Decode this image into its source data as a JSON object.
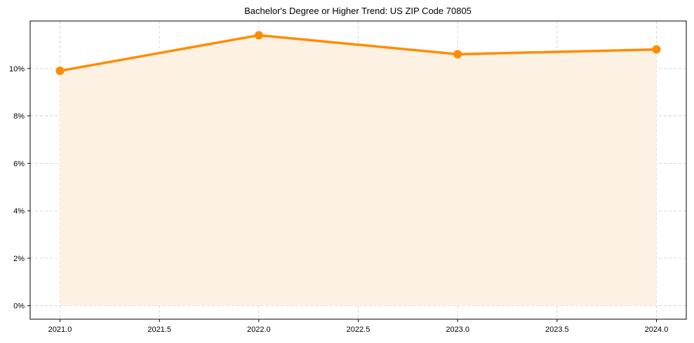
{
  "chart_data": {
    "type": "line",
    "title": "Bachelor's Degree or Higher Trend: US ZIP Code 70805",
    "xlabel": "",
    "ylabel": "",
    "x": [
      2021,
      2022,
      2023,
      2024
    ],
    "series": [
      {
        "name": "Bachelor's Degree or Higher",
        "values": [
          9.9,
          11.4,
          10.6,
          10.8
        ],
        "color": "#ff8c00",
        "fill": "#fdf1e3"
      }
    ],
    "x_ticks": [
      "2021.0",
      "2021.5",
      "2022.0",
      "2022.5",
      "2023.0",
      "2023.5",
      "2024.0"
    ],
    "x_tick_values": [
      2021.0,
      2021.5,
      2022.0,
      2022.5,
      2023.0,
      2023.5,
      2024.0
    ],
    "y_ticks": [
      "0%",
      "2%",
      "4%",
      "6%",
      "8%",
      "10%"
    ],
    "y_tick_values": [
      0,
      2,
      4,
      6,
      8,
      10
    ],
    "xlim": [
      2020.85,
      2024.15
    ],
    "ylim": [
      -0.57,
      12.0
    ],
    "grid": true,
    "legend": "none"
  }
}
